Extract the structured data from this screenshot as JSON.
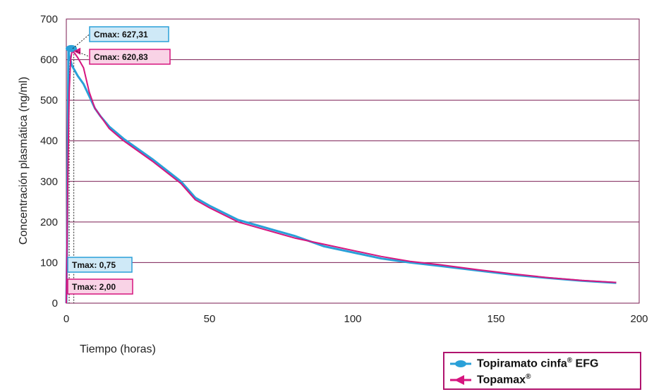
{
  "chart_data": {
    "type": "line",
    "xlabel": "Tiempo (horas)",
    "ylabel": "Concentración plasmática (ng/ml)",
    "xlim": [
      0,
      200
    ],
    "ylim": [
      0,
      700
    ],
    "xticks": [
      0,
      50,
      100,
      150,
      200
    ],
    "yticks": [
      0,
      100,
      200,
      300,
      400,
      500,
      600,
      700
    ],
    "x_tick_labels": [
      "0",
      "50",
      "100",
      "150",
      "200"
    ],
    "y_tick_labels": [
      "0",
      "100",
      "200",
      "300",
      "400",
      "500",
      "600",
      "700"
    ],
    "grid": "horizontal",
    "legend_position": "bottom-right",
    "series": [
      {
        "name": "Topiramato cinfa",
        "name_sup": "®",
        "name_suffix": " EFG",
        "color": "#2aa0d8",
        "marker": "circle",
        "points": [
          [
            0,
            0
          ],
          [
            0.25,
            140
          ],
          [
            0.5,
            400
          ],
          [
            0.75,
            627.31
          ],
          [
            1,
            610
          ],
          [
            2,
            585
          ],
          [
            4,
            560
          ],
          [
            6,
            540
          ],
          [
            8,
            510
          ],
          [
            10,
            480
          ],
          [
            12,
            460
          ],
          [
            15,
            435
          ],
          [
            20,
            405
          ],
          [
            30,
            355
          ],
          [
            40,
            300
          ],
          [
            45,
            260
          ],
          [
            50,
            240
          ],
          [
            60,
            205
          ],
          [
            70,
            185
          ],
          [
            80,
            165
          ],
          [
            90,
            140
          ],
          [
            100,
            125
          ],
          [
            110,
            110
          ],
          [
            120,
            100
          ],
          [
            130,
            92
          ],
          [
            144,
            80
          ],
          [
            156,
            70
          ],
          [
            168,
            62
          ],
          [
            180,
            55
          ],
          [
            192,
            50
          ]
        ]
      },
      {
        "name": "Topamax",
        "name_sup": "®",
        "name_suffix": "",
        "color": "#d6157f",
        "marker": "triangle-left",
        "points": [
          [
            0,
            0
          ],
          [
            0.5,
            300
          ],
          [
            1,
            520
          ],
          [
            1.5,
            600
          ],
          [
            2,
            620.83
          ],
          [
            3,
            615
          ],
          [
            4,
            605
          ],
          [
            6,
            580
          ],
          [
            8,
            520
          ],
          [
            10,
            480
          ],
          [
            12,
            460
          ],
          [
            15,
            430
          ],
          [
            20,
            400
          ],
          [
            30,
            350
          ],
          [
            40,
            295
          ],
          [
            45,
            255
          ],
          [
            50,
            235
          ],
          [
            60,
            200
          ],
          [
            70,
            180
          ],
          [
            80,
            160
          ],
          [
            90,
            145
          ],
          [
            100,
            130
          ],
          [
            110,
            115
          ],
          [
            120,
            103
          ],
          [
            130,
            95
          ],
          [
            144,
            82
          ],
          [
            156,
            72
          ],
          [
            168,
            63
          ],
          [
            180,
            56
          ],
          [
            192,
            51
          ]
        ]
      }
    ],
    "annotations": [
      {
        "text": "Cmax: 627,31",
        "series": 0,
        "kind": "cmax",
        "x": 0.75,
        "y": 627.31
      },
      {
        "text": "Cmax: 620,83",
        "series": 1,
        "kind": "cmax",
        "x": 2.0,
        "y": 620.83
      },
      {
        "text": "Tmax: 0,75",
        "series": 0,
        "kind": "tmax",
        "x": 0.75,
        "y": 627.31
      },
      {
        "text": "Tmax: 2,00",
        "series": 1,
        "kind": "tmax",
        "x": 2.0,
        "y": 620.83
      }
    ]
  },
  "colors": {
    "grid": "#7a1b52",
    "axis": "#7a1b52",
    "cmax_box_fill_1": "#cfe9f7",
    "cmax_box_border_1": "#2aa0d8",
    "cmax_box_fill_2": "#f9d3e6",
    "cmax_box_border_2": "#d6157f",
    "legend_border": "#b0146e"
  }
}
